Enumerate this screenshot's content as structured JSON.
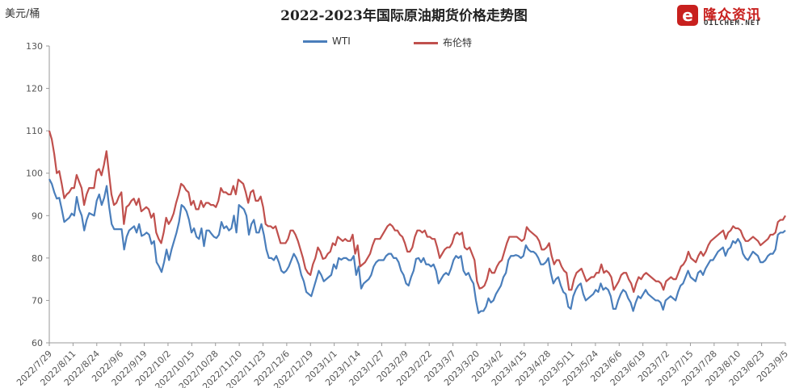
{
  "chart_data": {
    "type": "line",
    "title": "2022-2023年国际原油期货价格走势图",
    "ylabel": "美元/桶",
    "ylim": [
      60,
      130
    ],
    "yticks": [
      60,
      70,
      80,
      90,
      100,
      110,
      120,
      130
    ],
    "grid": false,
    "legend_position": "top-center",
    "x_tick_labels": [
      "2022/7/29",
      "2022/8/11",
      "2022/8/24",
      "2022/9/6",
      "2022/9/19",
      "2022/10/2",
      "2022/10/15",
      "2022/10/28",
      "2022/11/10",
      "2022/11/23",
      "2022/12/6",
      "2022/12/19",
      "2023/1/1",
      "2023/1/14",
      "2023/1/27",
      "2023/2/9",
      "2023/2/22",
      "2023/3/7",
      "2023/3/20",
      "2023/4/2",
      "2023/4/15",
      "2023/4/28",
      "2023/5/11",
      "2023/5/24",
      "2023/6/6",
      "2023/6/19",
      "2023/7/2",
      "2023/7/15",
      "2023/7/28",
      "2023/8/10",
      "2023/8/23",
      "2023/9/5"
    ],
    "series": [
      {
        "name": "WTI",
        "color": "#4a7ebb",
        "values": [
          98.6,
          97.5,
          95.5,
          94.0,
          94.2,
          91.5,
          88.5,
          89.0,
          89.5,
          90.5,
          90.0,
          94.4,
          91.5,
          90.0,
          86.5,
          89.0,
          90.6,
          90.3,
          90.0,
          93.5,
          95.0,
          92.5,
          94.2,
          97.0,
          92.0,
          88.0,
          86.8,
          86.8,
          86.8,
          86.8,
          82.0,
          85.0,
          86.5,
          87.0,
          87.5,
          86.0,
          88.0,
          85.2,
          85.5,
          86.0,
          85.5,
          83.3,
          84.0,
          79.0,
          78.0,
          76.7,
          79.0,
          82.0,
          79.5,
          82.0,
          84.0,
          86.0,
          88.5,
          92.5,
          92.0,
          91.0,
          89.0,
          86.0,
          87.0,
          85.0,
          84.5,
          87.0,
          82.8,
          86.5,
          86.5,
          85.7,
          85.0,
          84.7,
          85.5,
          88.5,
          87.0,
          87.5,
          86.5,
          87.0,
          90.0,
          86.0,
          92.5,
          92.0,
          91.5,
          90.0,
          85.5,
          88.0,
          89.0,
          86.0,
          86.0,
          88.0,
          85.5,
          82.0,
          80.0,
          80.0,
          79.5,
          80.5,
          79.0,
          77.0,
          76.5,
          77.0,
          78.0,
          79.5,
          81.0,
          80.0,
          78.5,
          76.0,
          74.5,
          72.0,
          71.5,
          71.0,
          73.0,
          75.0,
          77.0,
          76.0,
          74.5,
          75.0,
          75.5,
          76.0,
          78.5,
          77.5,
          80.0,
          79.6,
          80.0,
          80.0,
          79.5,
          79.5,
          80.5,
          76.0,
          78.0,
          72.8,
          74.0,
          74.5,
          75.0,
          76.0,
          78.0,
          79.0,
          79.5,
          79.5,
          79.5,
          80.5,
          81.0,
          81.0,
          80.0,
          80.0,
          79.0,
          77.0,
          76.0,
          74.0,
          73.5,
          75.5,
          77.0,
          79.8,
          80.0,
          79.0,
          80.0,
          78.5,
          78.5,
          78.0,
          78.5,
          77.0,
          74.0,
          75.0,
          76.0,
          76.5,
          76.0,
          77.5,
          79.5,
          80.5,
          80.0,
          80.5,
          77.0,
          76.0,
          76.5,
          75.0,
          74.0,
          70.0,
          67.0,
          67.5,
          67.5,
          68.5,
          70.5,
          69.5,
          70.0,
          71.5,
          72.5,
          73.5,
          75.5,
          76.5,
          79.5,
          80.5,
          80.5,
          80.7,
          80.5,
          80.0,
          80.5,
          83.0,
          82.0,
          81.5,
          81.5,
          81.0,
          80.0,
          78.5,
          78.5,
          79.0,
          80.0,
          76.5,
          74.0,
          75.0,
          75.5,
          73.5,
          72.0,
          71.5,
          68.5,
          68.0,
          71.0,
          72.5,
          73.5,
          74.0,
          71.5,
          70.0,
          70.5,
          71.0,
          71.5,
          72.5,
          72.0,
          74.0,
          72.5,
          73.0,
          72.5,
          71.0,
          68.0,
          68.0,
          70.0,
          71.5,
          72.5,
          72.0,
          70.5,
          69.5,
          67.5,
          69.5,
          71.0,
          70.5,
          71.5,
          72.5,
          71.5,
          71.0,
          70.5,
          70.0,
          70.0,
          69.5,
          67.8,
          70.0,
          70.5,
          71.0,
          70.5,
          70.0,
          72.0,
          73.5,
          74.0,
          75.5,
          77.0,
          75.5,
          75.0,
          74.5,
          76.5,
          77.0,
          76.0,
          77.5,
          78.5,
          79.5,
          79.5,
          80.5,
          81.5,
          82.0,
          82.5,
          80.5,
          82.0,
          82.5,
          84.0,
          83.5,
          84.5,
          83.5,
          81.0,
          80.0,
          79.5,
          80.5,
          81.5,
          81.0,
          80.5,
          79.0,
          79.0,
          79.5,
          80.5,
          81.0,
          81.0,
          82.0,
          85.5,
          86.0,
          86.0,
          86.5
        ]
      },
      {
        "name": "布伦特",
        "color": "#c0504d",
        "values": [
          110.0,
          108.0,
          104.5,
          100.0,
          100.5,
          97.5,
          94.1,
          95.0,
          95.5,
          96.5,
          96.5,
          99.6,
          98.0,
          96.5,
          92.5,
          95.0,
          96.5,
          96.5,
          96.5,
          100.5,
          101.0,
          99.5,
          102.0,
          105.2,
          100.0,
          95.0,
          92.5,
          93.0,
          94.5,
          95.5,
          88.0,
          92.0,
          92.5,
          93.5,
          94.0,
          92.5,
          94.0,
          91.0,
          91.5,
          92.0,
          91.5,
          89.5,
          90.5,
          86.0,
          84.5,
          83.5,
          86.0,
          89.5,
          88.0,
          89.0,
          90.5,
          93.0,
          95.0,
          97.5,
          97.0,
          96.0,
          95.5,
          92.5,
          93.5,
          91.5,
          91.5,
          93.5,
          92.0,
          93.0,
          93.0,
          92.5,
          92.5,
          92.0,
          93.5,
          96.5,
          95.5,
          95.5,
          95.0,
          95.0,
          97.0,
          95.0,
          98.5,
          98.0,
          97.5,
          95.5,
          93.0,
          95.5,
          96.0,
          93.5,
          93.5,
          94.5,
          92.0,
          88.0,
          87.5,
          87.5,
          87.0,
          87.5,
          85.5,
          83.5,
          83.5,
          83.5,
          84.5,
          86.5,
          86.5,
          85.5,
          84.0,
          82.0,
          80.0,
          77.5,
          76.5,
          76.0,
          78.5,
          80.0,
          82.5,
          81.5,
          79.8,
          80.0,
          81.0,
          81.5,
          83.5,
          83.0,
          85.0,
          84.5,
          84.0,
          84.5,
          84.0,
          84.0,
          85.5,
          81.0,
          83.0,
          78.0,
          78.5,
          79.0,
          80.0,
          81.0,
          83.0,
          84.5,
          84.5,
          84.5,
          85.5,
          86.5,
          87.5,
          88.0,
          87.5,
          86.5,
          86.5,
          85.5,
          85.0,
          83.5,
          81.5,
          81.5,
          82.5,
          85.0,
          86.5,
          86.5,
          86.0,
          86.5,
          85.0,
          85.0,
          84.5,
          84.5,
          82.5,
          80.0,
          81.0,
          82.0,
          82.5,
          82.5,
          83.5,
          85.5,
          86.0,
          85.5,
          86.0,
          82.5,
          82.0,
          82.5,
          81.0,
          79.5,
          74.5,
          72.8,
          73.0,
          73.5,
          75.0,
          77.5,
          76.5,
          76.5,
          78.0,
          79.0,
          79.5,
          81.5,
          83.5,
          85.0,
          85.0,
          85.0,
          85.0,
          84.5,
          84.0,
          84.5,
          87.3,
          86.5,
          86.0,
          85.5,
          85.0,
          84.0,
          82.0,
          82.0,
          82.5,
          83.5,
          80.5,
          78.5,
          79.5,
          79.5,
          78.0,
          77.0,
          76.5,
          72.5,
          72.5,
          75.0,
          76.5,
          77.0,
          77.5,
          76.0,
          74.5,
          75.0,
          75.5,
          75.5,
          76.5,
          76.5,
          78.5,
          76.5,
          77.0,
          76.5,
          75.5,
          72.5,
          73.5,
          74.5,
          76.0,
          76.5,
          76.5,
          75.0,
          74.0,
          72.0,
          74.0,
          75.5,
          75.0,
          76.0,
          76.5,
          76.0,
          75.5,
          75.0,
          74.5,
          74.5,
          74.0,
          72.5,
          74.5,
          75.0,
          75.5,
          75.0,
          75.0,
          76.5,
          78.0,
          78.5,
          79.5,
          81.5,
          80.0,
          79.5,
          79.0,
          80.5,
          81.5,
          80.5,
          81.5,
          83.0,
          84.0,
          84.5,
          85.0,
          85.5,
          86.0,
          86.5,
          84.5,
          86.0,
          86.5,
          87.5,
          87.0,
          87.0,
          86.5,
          85.0,
          84.0,
          84.0,
          84.5,
          85.0,
          84.5,
          84.0,
          83.0,
          83.5,
          84.0,
          84.5,
          85.5,
          85.5,
          86.0,
          88.5,
          89.0,
          89.0,
          90.0
        ]
      }
    ]
  },
  "logo": {
    "cn": "隆众资讯",
    "en": "OILCHEM.NET",
    "mark": "e"
  }
}
